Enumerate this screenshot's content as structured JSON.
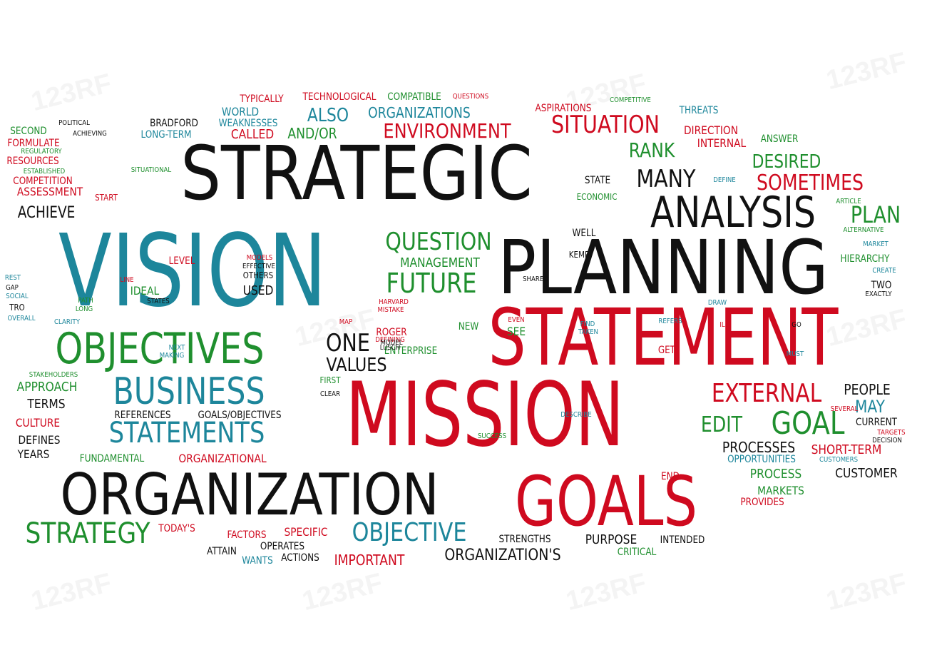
{
  "colors": {
    "red": "#cf0a1f",
    "green": "#1f8f2e",
    "blue": "#1d869b",
    "black": "#111111"
  },
  "watermark": "123RF",
  "words": [
    [
      "STRATEGIC",
      "black",
      104,
      0.86,
      500,
      243
    ],
    [
      "VISION",
      "blue",
      140,
      0.78,
      270,
      381
    ],
    [
      "PLANNING",
      "black",
      104,
      0.86,
      930,
      375
    ],
    [
      "STATEMENT",
      "red",
      110,
      0.76,
      930,
      473
    ],
    [
      "MISSION",
      "red",
      124,
      0.74,
      680,
      582
    ],
    [
      "ORGANIZATION",
      "black",
      80,
      0.86,
      350,
      694
    ],
    [
      "GOALS",
      "red",
      96,
      0.78,
      850,
      703
    ],
    [
      "ANALYSIS",
      "black",
      60,
      0.82,
      1028,
      298
    ],
    [
      "OBJECTIVES",
      "green",
      60,
      0.82,
      224,
      489
    ],
    [
      "BUSINESS",
      "blue",
      52,
      0.82,
      265,
      549
    ],
    [
      "STATEMENTS",
      "blue",
      40,
      0.84,
      262,
      607
    ],
    [
      "STRATEGY",
      "green",
      40,
      0.86,
      123,
      748
    ],
    [
      "OBJECTIVE",
      "blue",
      36,
      0.84,
      574,
      747
    ],
    [
      "EXTERNAL",
      "red",
      36,
      0.82,
      1075,
      552
    ],
    [
      "GOAL",
      "green",
      44,
      0.84,
      1133,
      594
    ],
    [
      "QUESTION",
      "green",
      34,
      0.84,
      615,
      339
    ],
    [
      "FUTURE",
      "green",
      38,
      0.84,
      605,
      397
    ],
    [
      "MANAGEMENT",
      "green",
      18,
      0.86,
      617,
      369
    ],
    [
      "SITUATION",
      "red",
      34,
      0.84,
      849,
      175
    ],
    [
      "ENVIRONMENT",
      "red",
      28,
      0.86,
      627,
      184
    ],
    [
      "MANY",
      "black",
      34,
      0.84,
      934,
      251
    ],
    [
      "RANK",
      "green",
      28,
      0.84,
      914,
      211
    ],
    [
      "DESIRED",
      "green",
      26,
      0.84,
      1103,
      227
    ],
    [
      "SOMETIMES",
      "red",
      30,
      0.84,
      1136,
      257
    ],
    [
      "PLAN",
      "green",
      32,
      0.84,
      1228,
      301
    ],
    [
      "ONE",
      "black",
      34,
      0.84,
      488,
      481
    ],
    [
      "VALUES",
      "black",
      26,
      0.86,
      500,
      512
    ],
    [
      "ORGANIZATIONS",
      "blue",
      20,
      0.86,
      588,
      158
    ],
    [
      "ALSO",
      "blue",
      26,
      0.84,
      460,
      162
    ],
    [
      "AND/OR",
      "green",
      20,
      0.86,
      438,
      187
    ],
    [
      "EDIT",
      "green",
      30,
      0.84,
      1012,
      596
    ],
    [
      "PROCESSES",
      "black",
      20,
      0.86,
      1064,
      627
    ],
    [
      "SHORT-TERM",
      "red",
      18,
      0.86,
      1187,
      631
    ],
    [
      "PEOPLE",
      "black",
      20,
      0.86,
      1216,
      546
    ],
    [
      "MAY",
      "blue",
      24,
      0.84,
      1220,
      570
    ],
    [
      "CUSTOMER",
      "black",
      18,
      0.86,
      1215,
      664
    ],
    [
      "PROCESS",
      "green",
      18,
      0.86,
      1088,
      665
    ],
    [
      "MARKETS",
      "green",
      16,
      0.86,
      1095,
      688
    ],
    [
      "PROVIDES",
      "red",
      14,
      0.86,
      1069,
      704
    ],
    [
      "CURRENT",
      "black",
      14,
      0.86,
      1229,
      592
    ],
    [
      "TERMS",
      "black",
      18,
      0.86,
      65,
      567
    ],
    [
      "CULTURE",
      "red",
      16,
      0.86,
      53,
      593
    ],
    [
      "DEFINES",
      "black",
      16,
      0.86,
      55,
      617
    ],
    [
      "YEARS",
      "black",
      16,
      0.86,
      47,
      637
    ],
    [
      "APPROACH",
      "green",
      18,
      0.86,
      66,
      543
    ],
    [
      "ACHIEVE",
      "black",
      22,
      0.84,
      65,
      299
    ],
    [
      "ASSESSMENT",
      "red",
      16,
      0.86,
      70,
      269
    ],
    [
      "COMPETITION",
      "red",
      14,
      0.86,
      60,
      254
    ],
    [
      "RESOURCES",
      "red",
      14,
      0.86,
      46,
      226
    ],
    [
      "FORMULATE",
      "red",
      14,
      0.86,
      47,
      201
    ],
    [
      "SECOND",
      "green",
      14,
      0.86,
      40,
      184
    ],
    [
      "WORLD",
      "blue",
      16,
      0.86,
      337,
      157
    ],
    [
      "WEAKNESSES",
      "blue",
      14,
      0.86,
      348,
      173
    ],
    [
      "CALLED",
      "red",
      18,
      0.86,
      354,
      189
    ],
    [
      "TYPICALLY",
      "red",
      14,
      0.86,
      367,
      139
    ],
    [
      "TECHNOLOGICAL",
      "red",
      14,
      0.86,
      476,
      136
    ],
    [
      "COMPATIBLE",
      "green",
      14,
      0.86,
      581,
      136
    ],
    [
      "BRADFORD",
      "black",
      14,
      0.86,
      244,
      173
    ],
    [
      "LONG-TERM",
      "blue",
      14,
      0.86,
      233,
      189
    ],
    [
      "ASPIRATIONS",
      "red",
      14,
      0.86,
      790,
      152
    ],
    [
      "THREATS",
      "blue",
      14,
      0.86,
      980,
      155
    ],
    [
      "DIRECTION",
      "red",
      16,
      0.86,
      997,
      183
    ],
    [
      "INTERNAL",
      "red",
      16,
      0.86,
      1012,
      201
    ],
    [
      "ANSWER",
      "green",
      14,
      0.86,
      1093,
      195
    ],
    [
      "STATE",
      "black",
      14,
      0.86,
      838,
      253
    ],
    [
      "ECONOMIC",
      "green",
      12,
      0.86,
      837,
      276
    ],
    [
      "WELL",
      "black",
      14,
      0.86,
      819,
      327
    ],
    [
      "KEMP",
      "black",
      12,
      0.86,
      812,
      357
    ],
    [
      "HIERARCHY",
      "green",
      14,
      0.86,
      1213,
      363
    ],
    [
      "TWO",
      "black",
      14,
      0.86,
      1236,
      400
    ],
    [
      "EXACTLY",
      "black",
      10,
      0.86,
      1232,
      413
    ],
    [
      "LEVEL",
      "red",
      14,
      0.86,
      255,
      366
    ],
    [
      "IDEAL",
      "green",
      16,
      0.86,
      203,
      408
    ],
    [
      "USED",
      "black",
      18,
      0.86,
      362,
      408
    ],
    [
      "OTHERS",
      "black",
      12,
      0.86,
      362,
      386
    ],
    [
      "REFERENCES",
      "black",
      14,
      0.86,
      200,
      582
    ],
    [
      "GOALS/OBJECTIVES",
      "black",
      14,
      0.86,
      336,
      582
    ],
    [
      "FUNDAMENTAL",
      "green",
      14,
      0.86,
      157,
      643
    ],
    [
      "ORGANIZATIONAL",
      "red",
      16,
      0.86,
      312,
      643
    ],
    [
      "TODAY'S",
      "red",
      14,
      0.86,
      248,
      741
    ],
    [
      "FACTORS",
      "red",
      14,
      0.86,
      346,
      750
    ],
    [
      "SPECIFIC",
      "red",
      16,
      0.86,
      429,
      746
    ],
    [
      "ATTAIN",
      "black",
      14,
      0.86,
      311,
      773
    ],
    [
      "OPERATES",
      "black",
      14,
      0.86,
      396,
      766
    ],
    [
      "WANTS",
      "blue",
      14,
      0.86,
      361,
      786
    ],
    [
      "ACTIONS",
      "black",
      14,
      0.86,
      421,
      782
    ],
    [
      "IMPORTANT",
      "red",
      20,
      0.86,
      518,
      785
    ],
    [
      "ORGANIZATION'S",
      "black",
      22,
      0.86,
      705,
      779
    ],
    [
      "STRENGTHS",
      "black",
      14,
      0.86,
      736,
      756
    ],
    [
      "PURPOSE",
      "black",
      18,
      0.86,
      857,
      757
    ],
    [
      "INTENDED",
      "black",
      14,
      0.86,
      957,
      757
    ],
    [
      "CRITICAL",
      "green",
      14,
      0.86,
      893,
      774
    ],
    [
      "ROGER",
      "red",
      14,
      0.86,
      549,
      466
    ],
    [
      "ENTERPRISE",
      "green",
      14,
      0.86,
      576,
      492
    ],
    [
      "SEE",
      "green",
      16,
      0.86,
      724,
      465
    ],
    [
      "NEW",
      "green",
      14,
      0.86,
      657,
      458
    ],
    [
      "GET",
      "red",
      14,
      0.86,
      935,
      491
    ],
    [
      "OPPORTUNITIES",
      "blue",
      14,
      0.86,
      1068,
      644
    ],
    [
      "END",
      "red",
      14,
      0.86,
      940,
      668
    ],
    [
      "FIRST",
      "green",
      12,
      0.86,
      463,
      533
    ],
    [
      "SUCCESS",
      "green",
      10,
      0.86,
      690,
      612
    ],
    [
      "DESCRIBE",
      "blue",
      10,
      0.86,
      808,
      582
    ],
    [
      "CLEAR",
      "black",
      10,
      0.86,
      463,
      553
    ],
    [
      "POLITICAL",
      "black",
      10,
      0.86,
      104,
      173
    ],
    [
      "ACHIEVING",
      "black",
      10,
      0.86,
      126,
      188
    ],
    [
      "SITUATIONAL",
      "green",
      10,
      0.86,
      212,
      239
    ],
    [
      "REGULATORY",
      "green",
      10,
      0.86,
      58,
      213
    ],
    [
      "ESTABLISHED",
      "green",
      10,
      0.86,
      62,
      241
    ],
    [
      "START",
      "red",
      12,
      0.86,
      149,
      277
    ],
    [
      "COMPETITIVE",
      "green",
      10,
      0.86,
      884,
      141
    ],
    [
      "QUESTIONS",
      "red",
      10,
      0.86,
      660,
      136
    ],
    [
      "DEFINE",
      "blue",
      10,
      0.86,
      1016,
      253
    ],
    [
      "ARTICLE",
      "green",
      10,
      0.86,
      1190,
      283
    ],
    [
      "ALTERNATIVE",
      "green",
      10,
      0.86,
      1211,
      323
    ],
    [
      "MARKET",
      "blue",
      10,
      0.86,
      1228,
      343
    ],
    [
      "CREATE",
      "blue",
      10,
      0.86,
      1240,
      380
    ],
    [
      "DRAW",
      "blue",
      10,
      0.86,
      1006,
      425
    ],
    [
      "REFERS",
      "blue",
      10,
      0.86,
      940,
      451
    ],
    [
      "IL",
      "red",
      10,
      0.86,
      1013,
      456
    ],
    [
      "GO",
      "black",
      10,
      0.86,
      1117,
      456
    ],
    [
      "MUST",
      "blue",
      10,
      0.86,
      1115,
      497
    ],
    [
      "FIND",
      "blue",
      10,
      0.86,
      824,
      455
    ],
    [
      "TAKEN",
      "blue",
      10,
      0.86,
      825,
      466
    ],
    [
      "EVEN",
      "red",
      10,
      0.86,
      724,
      449
    ],
    [
      "SHARED",
      "black",
      10,
      0.86,
      751,
      392
    ],
    [
      "MAP",
      "red",
      10,
      0.86,
      485,
      452
    ],
    [
      "HARVARD",
      "red",
      10,
      0.86,
      552,
      424
    ],
    [
      "MISTAKE",
      "red",
      10,
      0.86,
      548,
      435
    ],
    [
      "DEFINING",
      "red",
      10,
      0.86,
      547,
      477
    ],
    [
      "LUSCH",
      "black",
      10,
      0.86,
      547,
      488
    ],
    [
      "MODEL",
      "black",
      10,
      0.86,
      549,
      481
    ],
    [
      "MODELS",
      "red",
      10,
      0.86,
      364,
      362
    ],
    [
      "EFFECTIVE",
      "black",
      10,
      0.86,
      363,
      374
    ],
    [
      "LINE",
      "red",
      10,
      0.86,
      178,
      393
    ],
    [
      "PATH",
      "green",
      10,
      0.86,
      120,
      422
    ],
    [
      "LONG",
      "green",
      10,
      0.86,
      118,
      434
    ],
    [
      "STATES",
      "black",
      10,
      0.86,
      222,
      423
    ],
    [
      "NEXT",
      "blue",
      10,
      0.86,
      248,
      488
    ],
    [
      "MAKING",
      "blue",
      10,
      0.86,
      241,
      499
    ],
    [
      "STAKEHOLDERS",
      "green",
      10,
      0.86,
      75,
      526
    ],
    [
      "REST",
      "blue",
      10,
      0.86,
      18,
      390
    ],
    [
      "GAP",
      "black",
      10,
      0.86,
      17,
      404
    ],
    [
      "SOCIAL",
      "blue",
      10,
      0.86,
      24,
      416
    ],
    [
      "TRO",
      "black",
      12,
      0.86,
      24,
      431
    ],
    [
      "OVERALL",
      "blue",
      10,
      0.86,
      30,
      447
    ],
    [
      "CLARITY",
      "blue",
      10,
      0.86,
      94,
      452
    ],
    [
      "SEVERAL",
      "red",
      10,
      0.86,
      1184,
      574
    ],
    [
      "TARGETS",
      "red",
      10,
      0.86,
      1250,
      607
    ],
    [
      "DECISION",
      "black",
      10,
      0.86,
      1244,
      618
    ],
    [
      "CUSTOMERS",
      "blue",
      10,
      0.86,
      1176,
      645
    ]
  ]
}
